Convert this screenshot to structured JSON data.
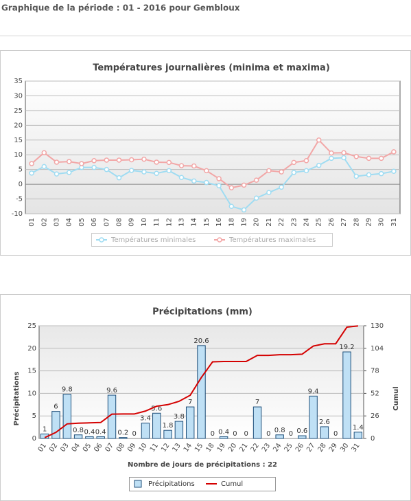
{
  "header": {
    "title": "Graphique de la période : 01 - 2016 pour Gembloux"
  },
  "chart_data": [
    {
      "type": "line",
      "title": "Températures journalières (minima et maxima)",
      "categories": [
        "01",
        "02",
        "03",
        "04",
        "05",
        "06",
        "07",
        "08",
        "09",
        "10",
        "11",
        "12",
        "13",
        "14",
        "15",
        "16",
        "18",
        "19",
        "20",
        "21",
        "22",
        "23",
        "24",
        "25",
        "26",
        "27",
        "28",
        "29",
        "30",
        "31"
      ],
      "series": [
        {
          "name": "Températures minimales",
          "color": "#9fdcf2",
          "values": [
            3.8,
            6,
            3.5,
            4,
            5.7,
            5.7,
            5,
            2.2,
            4.7,
            4.2,
            3.7,
            4.6,
            2.3,
            1.1,
            0.6,
            -0.5,
            -7.5,
            -8.7,
            -4.7,
            -2.8,
            -1,
            4,
            4.6,
            6.4,
            8.8,
            9,
            2.7,
            3.2,
            3.6,
            4.4
          ]
        },
        {
          "name": "Températures maximales",
          "color": "#f2a6a6",
          "values": [
            7,
            10.7,
            7.5,
            7.7,
            7,
            8,
            8.2,
            8.2,
            8.3,
            8.5,
            7.5,
            7.4,
            6.3,
            6.2,
            4.6,
            1.9,
            -1.2,
            -0.3,
            1.4,
            4.6,
            4.2,
            7.4,
            8,
            15,
            10.6,
            10.7,
            9.4,
            8.8,
            8.8,
            11
          ]
        }
      ],
      "ylim": [
        -10,
        35
      ],
      "yticks": [
        -10,
        -5,
        0,
        5,
        10,
        15,
        20,
        25,
        30,
        35
      ],
      "grid": true
    },
    {
      "type": "bar",
      "title": "Précipitations (mm)",
      "categories": [
        "01",
        "02",
        "03",
        "04",
        "05",
        "06",
        "07",
        "08",
        "09",
        "10",
        "11",
        "12",
        "13",
        "14",
        "15",
        "18",
        "19",
        "20",
        "21",
        "22",
        "23",
        "24",
        "25",
        "26",
        "27",
        "28",
        "29",
        "30",
        "31"
      ],
      "series": [
        {
          "name": "Précipitations",
          "color": "#bfe0f5",
          "values": [
            1,
            6,
            9.8,
            0.8,
            0.4,
            0.4,
            9.6,
            0.2,
            0,
            3.4,
            5.6,
            1.8,
            3.8,
            7,
            20.6,
            0,
            0.4,
            0,
            0,
            7,
            0,
            0.8,
            0,
            0.6,
            9.4,
            2.6,
            0,
            19.2,
            1.4
          ]
        },
        {
          "name": "Cumul",
          "color": "#d40000",
          "axis": "y2",
          "values": [
            1,
            7,
            16.8,
            17.6,
            18,
            18.4,
            28,
            28.2,
            28.2,
            31.6,
            37.2,
            39,
            42.8,
            49.8,
            70.4,
            88.4,
            88.8,
            88.8,
            88.8,
            95.8,
            95.8,
            96.6,
            96.6,
            97.2,
            106.6,
            109.2,
            109.2,
            128.4,
            129.8
          ]
        }
      ],
      "ylim": [
        0,
        25
      ],
      "yticks": [
        0,
        5,
        10,
        15,
        20,
        25
      ],
      "y2lim": [
        0,
        130
      ],
      "y2ticks": [
        0,
        26,
        52,
        78,
        104,
        130
      ],
      "y_label": "Précipitations",
      "y2_label": "Cumul",
      "x_label": "Nombre de jours de précipitations : 22",
      "grid": true
    }
  ]
}
